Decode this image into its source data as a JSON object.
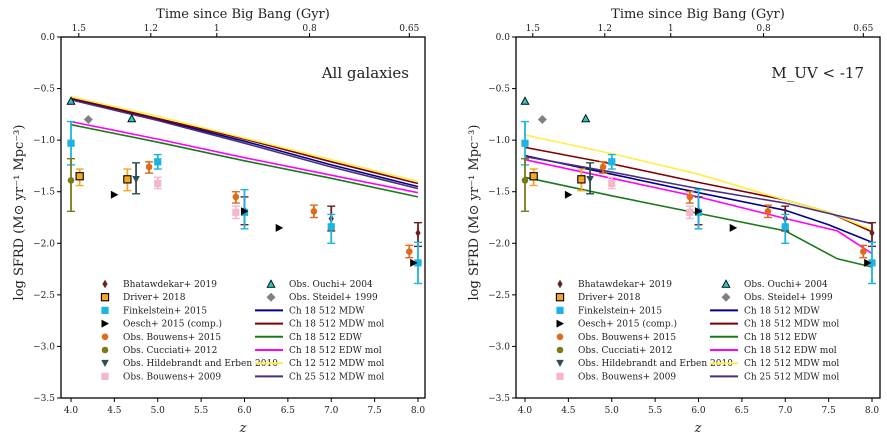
{
  "figure": {
    "description": "Cosmic star formation rate density vs redshift, two panels"
  },
  "chart_data": [
    {
      "type": "line",
      "panel": "left",
      "annotation": "All galaxies",
      "xlabel": "z",
      "ylabel": "log SFRD (M⊙ yr⁻¹ Mpc⁻³)",
      "top_xlabel": "Time since Big Bang (Gyr)",
      "xlim": [
        3.9,
        8.08
      ],
      "ylim": [
        -3.5,
        0.0
      ],
      "xticks": [
        4.0,
        4.5,
        5.0,
        5.5,
        6.0,
        6.5,
        7.0,
        7.5,
        8.0
      ],
      "xtick_labels": [
        "4.0",
        "4.5",
        "5.0",
        "5.5",
        "6.0",
        "6.5",
        "7.0",
        "7.5",
        "8.0"
      ],
      "yticks": [
        0.0,
        -0.5,
        -1.0,
        -1.5,
        -2.0,
        -2.5,
        -3.0,
        -3.5
      ],
      "ytick_labels": [
        "0.0",
        "−0.5",
        "−1.0",
        "−1.5",
        "−2.0",
        "−2.5",
        "−3.0",
        "−3.5"
      ],
      "top_ticks_z": [
        4.09,
        4.92,
        5.68,
        6.75,
        7.9
      ],
      "top_tick_labels": [
        "1.5",
        "1.2",
        "1",
        "0.8",
        "0.65"
      ],
      "legend_location": "lower-center",
      "series": [
        {
          "name": "Ch 18 512 MDW",
          "kind": "line",
          "color": "#00008b",
          "x": [
            4.0,
            5.0,
            6.0,
            7.0,
            8.0
          ],
          "y": [
            -0.6,
            -0.8,
            -1.01,
            -1.24,
            -1.45
          ]
        },
        {
          "name": "Ch 18 512 MDW mol",
          "kind": "line",
          "color": "#800000",
          "x": [
            4.0,
            5.0,
            6.0,
            7.0,
            8.0
          ],
          "y": [
            -0.59,
            -0.79,
            -0.99,
            -1.21,
            -1.42
          ]
        },
        {
          "name": "Ch 18 512 EDW",
          "kind": "line",
          "color": "#1a7a1a",
          "x": [
            4.0,
            5.0,
            6.0,
            7.0,
            8.0
          ],
          "y": [
            -0.85,
            -1.02,
            -1.2,
            -1.37,
            -1.55
          ]
        },
        {
          "name": "Ch 18 512 EDW mol",
          "kind": "line",
          "color": "#ff00ff",
          "x": [
            4.0,
            5.0,
            6.0,
            7.0,
            8.0
          ],
          "y": [
            -0.82,
            -0.99,
            -1.17,
            -1.34,
            -1.51
          ]
        },
        {
          "name": "Ch 12 512 MDW mol",
          "kind": "line",
          "color": "#ffee44",
          "x": [
            4.0,
            5.0,
            6.0,
            7.0,
            8.0
          ],
          "y": [
            -0.58,
            -0.77,
            -0.98,
            -1.19,
            -1.4
          ]
        },
        {
          "name": "Ch 25 512 MDW mol",
          "kind": "line",
          "color": "#4b2f7a",
          "x": [
            4.0,
            5.0,
            6.0,
            7.0,
            8.0
          ],
          "y": [
            -0.61,
            -0.81,
            -1.03,
            -1.26,
            -1.47
          ]
        },
        {
          "name": "Bhatawdekar+ 2019",
          "kind": "points",
          "marker": "thin-diamond",
          "color": "#6b1f1f",
          "points": [
            {
              "x": 6.0,
              "y": -1.68,
              "lo": -1.55,
              "hi": -1.82
            },
            {
              "x": 7.0,
              "y": -1.76,
              "lo": -1.64,
              "hi": -1.88
            },
            {
              "x": 8.0,
              "y": -1.9,
              "lo": -1.8,
              "hi": -2.03
            }
          ]
        },
        {
          "name": "Driver+ 2018",
          "kind": "points",
          "marker": "square-outlined",
          "color": "#f5a623",
          "points": [
            {
              "x": 4.1,
              "y": -1.35,
              "lo": -1.28,
              "hi": -1.44
            },
            {
              "x": 4.65,
              "y": -1.38,
              "lo": -1.28,
              "hi": -1.49
            }
          ]
        },
        {
          "name": "Finkelstein+ 2015",
          "kind": "points",
          "marker": "square",
          "color": "#1cb4e0",
          "points": [
            {
              "x": 4.0,
              "y": -1.03,
              "lo": -0.82,
              "hi": -1.24
            },
            {
              "x": 5.0,
              "y": -1.21,
              "lo": -1.14,
              "hi": -1.28
            },
            {
              "x": 6.0,
              "y": -1.7,
              "lo": -1.48,
              "hi": -1.86
            },
            {
              "x": 7.0,
              "y": -1.84,
              "lo": -1.72,
              "hi": -2.0
            },
            {
              "x": 8.0,
              "y": -2.19,
              "lo": -1.99,
              "hi": -2.39
            }
          ]
        },
        {
          "name": "Oesch+ 2015 (comp.)",
          "kind": "points",
          "marker": "triangle-right",
          "color": "#000000",
          "points": [
            {
              "x": 4.5,
              "y": -1.53
            },
            {
              "x": 6.0,
              "y": -1.69
            },
            {
              "x": 6.4,
              "y": -1.85
            },
            {
              "x": 7.95,
              "y": -2.19
            }
          ]
        },
        {
          "name": "Obs. Bouwens+ 2015",
          "kind": "points",
          "marker": "circle",
          "color": "#e06a1b",
          "points": [
            {
              "x": 4.9,
              "y": -1.26,
              "lo": -1.21,
              "hi": -1.32
            },
            {
              "x": 5.9,
              "y": -1.55,
              "lo": -1.5,
              "hi": -1.61
            },
            {
              "x": 6.8,
              "y": -1.69,
              "lo": -1.63,
              "hi": -1.75
            },
            {
              "x": 7.9,
              "y": -2.08,
              "lo": -2.02,
              "hi": -2.14
            }
          ]
        },
        {
          "name": "Obs. Cucciati+ 2012",
          "kind": "points",
          "marker": "circle",
          "color": "#7a7a1a",
          "points": [
            {
              "x": 4.0,
              "y": -1.39,
              "lo": -1.18,
              "hi": -1.69
            }
          ]
        },
        {
          "name": "Obs. Hildebrandt and Erben 2010",
          "kind": "points",
          "marker": "triangle-down",
          "color": "#2f4f4f",
          "points": [
            {
              "x": 4.75,
              "y": -1.38,
              "lo": -1.22,
              "hi": -1.52
            }
          ]
        },
        {
          "name": "Obs. Bouwens+ 2009",
          "kind": "points",
          "marker": "square",
          "color": "#f4b8c8",
          "points": [
            {
              "x": 5.0,
              "y": -1.42,
              "lo": -1.36,
              "hi": -1.47
            },
            {
              "x": 5.9,
              "y": -1.7,
              "lo": -1.64,
              "hi": -1.76
            }
          ]
        },
        {
          "name": "Obs. Ouchi+ 2004",
          "kind": "points",
          "marker": "triangle-up",
          "color": "#20c8c8",
          "points": [
            {
              "x": 4.0,
              "y": -0.62
            },
            {
              "x": 4.7,
              "y": -0.79
            }
          ]
        },
        {
          "name": "Obs. Steidel+ 1999",
          "kind": "points",
          "marker": "diamond",
          "color": "#808080",
          "points": [
            {
              "x": 4.2,
              "y": -0.8
            }
          ]
        }
      ]
    },
    {
      "type": "line",
      "panel": "right",
      "annotation": "M_UV < -17",
      "xlabel": "z",
      "ylabel": "log SFRD (M⊙ yr⁻¹ Mpc⁻³)",
      "top_xlabel": "Time since Big Bang (Gyr)",
      "xlim": [
        3.9,
        8.08
      ],
      "ylim": [
        -3.5,
        0.0
      ],
      "xticks": [
        4.0,
        4.5,
        5.0,
        5.5,
        6.0,
        6.5,
        7.0,
        7.5,
        8.0
      ],
      "xtick_labels": [
        "4.0",
        "4.5",
        "5.0",
        "5.5",
        "6.0",
        "6.5",
        "7.0",
        "7.5",
        "8.0"
      ],
      "yticks": [
        0.0,
        -0.5,
        -1.0,
        -1.5,
        -2.0,
        -2.5,
        -3.0,
        -3.5
      ],
      "ytick_labels": [
        "0.0",
        "−0.5",
        "−1.0",
        "−1.5",
        "−2.0",
        "−2.5",
        "−3.0",
        "−3.5"
      ],
      "top_ticks_z": [
        4.09,
        4.92,
        5.68,
        6.75,
        7.9
      ],
      "top_tick_labels": [
        "1.5",
        "1.2",
        "1",
        "0.8",
        "0.65"
      ],
      "legend_location": "lower-center",
      "series": [
        {
          "name": "Ch 18 512 MDW",
          "kind": "line",
          "color": "#00008b",
          "x": [
            4.0,
            5.0,
            6.0,
            7.0,
            7.5,
            8.0
          ],
          "y": [
            -1.15,
            -1.33,
            -1.51,
            -1.68,
            -1.82,
            -1.99
          ]
        },
        {
          "name": "Ch 18 512 MDW mol",
          "kind": "line",
          "color": "#800000",
          "x": [
            4.0,
            5.0,
            6.0,
            7.0,
            7.5,
            8.0
          ],
          "y": [
            -1.07,
            -1.23,
            -1.41,
            -1.58,
            -1.7,
            -1.89
          ]
        },
        {
          "name": "Ch 18 512 EDW",
          "kind": "line",
          "color": "#1a7a1a",
          "x": [
            4.0,
            5.0,
            6.0,
            7.0,
            7.6,
            8.0
          ],
          "y": [
            -1.36,
            -1.54,
            -1.71,
            -1.88,
            -2.15,
            -2.23
          ]
        },
        {
          "name": "Ch 18 512 EDW mol",
          "kind": "line",
          "color": "#ff00ff",
          "x": [
            4.0,
            5.0,
            6.0,
            7.0,
            7.6,
            8.0
          ],
          "y": [
            -1.19,
            -1.37,
            -1.55,
            -1.76,
            -1.88,
            -2.1
          ]
        },
        {
          "name": "Ch 12 512 MDW mol",
          "kind": "line",
          "color": "#ffee44",
          "x": [
            4.0,
            5.0,
            6.0,
            7.0,
            7.5,
            8.0
          ],
          "y": [
            -0.95,
            -1.13,
            -1.33,
            -1.58,
            -1.7,
            -1.87
          ]
        },
        {
          "name": "Ch 25 512 MDW mol",
          "kind": "line",
          "color": "#4b2f7a",
          "x": [
            4.0,
            5.0,
            6.0,
            7.0,
            7.5,
            8.0
          ],
          "y": [
            -1.16,
            -1.31,
            -1.47,
            -1.61,
            -1.71,
            -1.81
          ]
        },
        {
          "name": "Bhatawdekar+ 2019",
          "kind": "points",
          "marker": "thin-diamond",
          "color": "#6b1f1f",
          "points": [
            {
              "x": 6.0,
              "y": -1.68,
              "lo": -1.55,
              "hi": -1.82
            },
            {
              "x": 7.0,
              "y": -1.76,
              "lo": -1.64,
              "hi": -1.88
            },
            {
              "x": 8.0,
              "y": -1.9,
              "lo": -1.8,
              "hi": -2.03
            }
          ]
        },
        {
          "name": "Driver+ 2018",
          "kind": "points",
          "marker": "square-outlined",
          "color": "#f5a623",
          "points": [
            {
              "x": 4.1,
              "y": -1.35,
              "lo": -1.28,
              "hi": -1.44
            },
            {
              "x": 4.65,
              "y": -1.38,
              "lo": -1.28,
              "hi": -1.49
            }
          ]
        },
        {
          "name": "Finkelstein+ 2015",
          "kind": "points",
          "marker": "square",
          "color": "#1cb4e0",
          "points": [
            {
              "x": 4.0,
              "y": -1.03,
              "lo": -0.82,
              "hi": -1.24
            },
            {
              "x": 5.0,
              "y": -1.21,
              "lo": -1.14,
              "hi": -1.28
            },
            {
              "x": 6.0,
              "y": -1.7,
              "lo": -1.48,
              "hi": -1.86
            },
            {
              "x": 7.0,
              "y": -1.84,
              "lo": -1.72,
              "hi": -2.0
            },
            {
              "x": 8.0,
              "y": -2.19,
              "lo": -1.99,
              "hi": -2.39
            }
          ]
        },
        {
          "name": "Oesch+ 2015 (comp.)",
          "kind": "points",
          "marker": "triangle-right",
          "color": "#000000",
          "points": [
            {
              "x": 4.5,
              "y": -1.53
            },
            {
              "x": 6.0,
              "y": -1.69
            },
            {
              "x": 6.4,
              "y": -1.85
            },
            {
              "x": 7.95,
              "y": -2.19
            }
          ]
        },
        {
          "name": "Obs. Bouwens+ 2015",
          "kind": "points",
          "marker": "circle",
          "color": "#e06a1b",
          "points": [
            {
              "x": 4.9,
              "y": -1.26,
              "lo": -1.21,
              "hi": -1.32
            },
            {
              "x": 5.9,
              "y": -1.55,
              "lo": -1.5,
              "hi": -1.61
            },
            {
              "x": 6.8,
              "y": -1.69,
              "lo": -1.63,
              "hi": -1.75
            },
            {
              "x": 7.9,
              "y": -2.08,
              "lo": -2.02,
              "hi": -2.14
            }
          ]
        },
        {
          "name": "Obs. Cucciati+ 2012",
          "kind": "points",
          "marker": "circle",
          "color": "#7a7a1a",
          "points": [
            {
              "x": 4.0,
              "y": -1.39,
              "lo": -1.18,
              "hi": -1.69
            }
          ]
        },
        {
          "name": "Obs. Hildebrandt and Erben 2010",
          "kind": "points",
          "marker": "triangle-down",
          "color": "#2f4f4f",
          "points": [
            {
              "x": 4.75,
              "y": -1.38,
              "lo": -1.22,
              "hi": -1.52
            }
          ]
        },
        {
          "name": "Obs. Bouwens+ 2009",
          "kind": "points",
          "marker": "square",
          "color": "#f4b8c8",
          "points": [
            {
              "x": 5.0,
              "y": -1.42,
              "lo": -1.36,
              "hi": -1.47
            },
            {
              "x": 5.9,
              "y": -1.7,
              "lo": -1.64,
              "hi": -1.76
            }
          ]
        },
        {
          "name": "Obs. Ouchi+ 2004",
          "kind": "points",
          "marker": "triangle-up",
          "color": "#20c8c8",
          "points": [
            {
              "x": 4.0,
              "y": -0.62
            },
            {
              "x": 4.7,
              "y": -0.79
            }
          ]
        },
        {
          "name": "Obs. Steidel+ 1999",
          "kind": "points",
          "marker": "diamond",
          "color": "#808080",
          "points": [
            {
              "x": 4.2,
              "y": -0.8
            }
          ]
        }
      ]
    }
  ],
  "legend": {
    "left_column": [
      "Bhatawdekar+ 2019",
      "Driver+ 2018",
      "Finkelstein+ 2015",
      "Oesch+ 2015 (comp.)",
      "Obs. Bouwens+ 2015",
      "Obs. Cucciati+ 2012",
      "Obs. Hildebrandt and Erben 2010",
      "Obs. Bouwens+ 2009"
    ],
    "right_column": [
      "Obs. Ouchi+ 2004",
      "Obs. Steidel+ 1999",
      "Ch 18 512 MDW",
      "Ch 18 512 MDW mol",
      "Ch 18 512 EDW",
      "Ch 18 512 EDW mol",
      "Ch 12 512 MDW mol",
      "Ch 25 512 MDW mol"
    ]
  }
}
